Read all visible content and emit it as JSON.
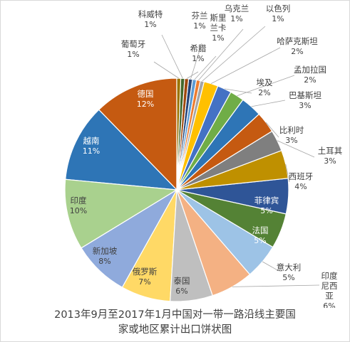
{
  "chart_data": {
    "type": "pie",
    "title_lines": [
      "2013年9月至2017年1月中国对一带一路沿线主要国",
      "家或地区累计出口饼状图"
    ],
    "value_suffix": "%",
    "slices": [
      {
        "label": "德国",
        "value": 12,
        "color": "#c55a11"
      },
      {
        "label": "越南",
        "value": 11,
        "color": "#2e75b6"
      },
      {
        "label": "印度",
        "value": 10,
        "color": "#a9d18e"
      },
      {
        "label": "新加坡",
        "value": 8,
        "color": "#8faadc"
      },
      {
        "label": "俄罗斯",
        "value": 7,
        "color": "#ffd966"
      },
      {
        "label": "泰国",
        "value": 6,
        "color": "#bfbfbf"
      },
      {
        "label": "印度尼西亚",
        "value": 6,
        "color": "#f4b183"
      },
      {
        "label": "意大利",
        "value": 5,
        "color": "#9dc3e6"
      },
      {
        "label": "法国",
        "value": 5,
        "color": "#548235"
      },
      {
        "label": "菲律宾",
        "value": 5,
        "color": "#2f5597"
      },
      {
        "label": "西班牙",
        "value": 4,
        "color": "#bf9000"
      },
      {
        "label": "土耳其",
        "value": 3,
        "color": "#7f7f7f"
      },
      {
        "label": "比利时",
        "value": 3,
        "color": "#c55a11"
      },
      {
        "label": "巴基斯坦",
        "value": 3,
        "color": "#2e75b6"
      },
      {
        "label": "孟加拉国",
        "value": 2,
        "color": "#70ad47"
      },
      {
        "label": "埃及",
        "value": 2,
        "color": "#4472c4"
      },
      {
        "label": "哈萨克斯坦",
        "value": 2,
        "color": "#ffc000"
      },
      {
        "label": "以色列",
        "value": 1,
        "color": "#a5a5a5"
      },
      {
        "label": "乌克兰",
        "value": 1,
        "color": "#ed7d31"
      },
      {
        "label": "斯里兰卡",
        "value": 1,
        "color": "#5b9bd5"
      },
      {
        "label": "芬兰",
        "value": 1,
        "color": "#264478"
      },
      {
        "label": "希腊",
        "value": 1,
        "color": "#9e480e"
      },
      {
        "label": "科威特",
        "value": 1,
        "color": "#43682b"
      },
      {
        "label": "葡萄牙",
        "value": 1,
        "color": "#997300"
      }
    ]
  }
}
